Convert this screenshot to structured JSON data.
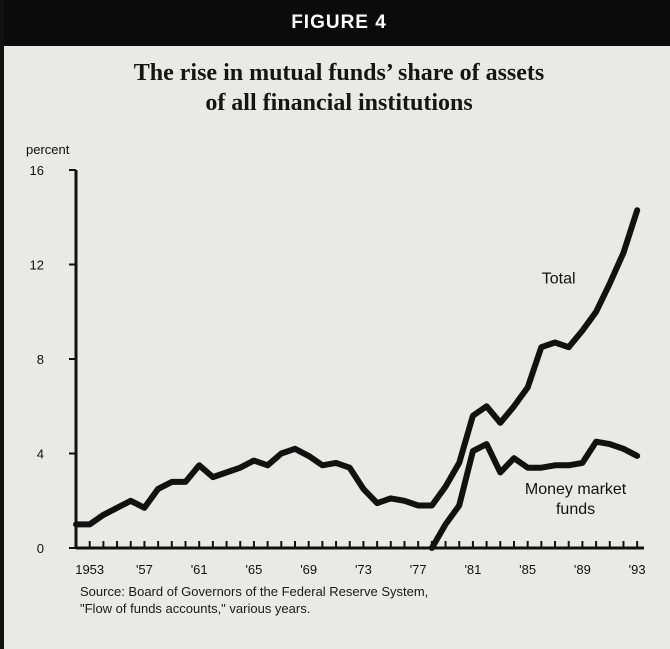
{
  "figure_label": "FIGURE 4",
  "chart_data": {
    "type": "line",
    "title_lines": [
      "The rise in mutual funds’ share of assets",
      "of all financial institutions"
    ],
    "ylabel": "percent",
    "ylim": [
      0,
      16
    ],
    "yticks": [
      0,
      4,
      8,
      12,
      16
    ],
    "xlim": [
      1952,
      1993.5
    ],
    "xtick_labels": [
      {
        "x": 1953,
        "label": "1953"
      },
      {
        "x": 1957,
        "label": "'57"
      },
      {
        "x": 1961,
        "label": "'61"
      },
      {
        "x": 1965,
        "label": "'65"
      },
      {
        "x": 1969,
        "label": "'69"
      },
      {
        "x": 1973,
        "label": "'73"
      },
      {
        "x": 1977,
        "label": "'77"
      },
      {
        "x": 1981,
        "label": "'81"
      },
      {
        "x": 1985,
        "label": "'85"
      },
      {
        "x": 1989,
        "label": "'89"
      },
      {
        "x": 1993,
        "label": "'93"
      }
    ],
    "series": [
      {
        "name": "Total",
        "label_lines": [
          "Total"
        ],
        "x": [
          1952,
          1953,
          1954,
          1955,
          1956,
          1957,
          1958,
          1959,
          1960,
          1961,
          1962,
          1963,
          1964,
          1965,
          1966,
          1967,
          1968,
          1969,
          1970,
          1971,
          1972,
          1973,
          1974,
          1975,
          1976,
          1977,
          1978,
          1979,
          1980,
          1981,
          1982,
          1983,
          1984,
          1985,
          1986,
          1987,
          1988,
          1989,
          1990,
          1991,
          1992,
          1993
        ],
        "values": [
          1.0,
          1.0,
          1.4,
          1.7,
          2.0,
          1.7,
          2.5,
          2.8,
          2.8,
          3.5,
          3.0,
          3.2,
          3.4,
          3.7,
          3.5,
          4.0,
          4.2,
          3.9,
          3.5,
          3.6,
          3.4,
          2.5,
          1.9,
          2.1,
          2.0,
          1.8,
          1.8,
          2.6,
          3.6,
          5.6,
          6.0,
          5.3,
          6.0,
          6.8,
          8.5,
          8.7,
          8.5,
          9.2,
          10.0,
          11.2,
          12.5,
          14.3
        ]
      },
      {
        "name": "Money market funds",
        "label_lines": [
          "Money market",
          "funds"
        ],
        "x": [
          1978,
          1979,
          1980,
          1981,
          1982,
          1983,
          1984,
          1985,
          1986,
          1987,
          1988,
          1989,
          1990,
          1991,
          1992,
          1993
        ],
        "values": [
          0.0,
          1.0,
          1.8,
          4.1,
          4.4,
          3.2,
          3.8,
          3.4,
          3.4,
          3.5,
          3.5,
          3.6,
          4.5,
          4.4,
          4.2,
          3.9
        ]
      }
    ],
    "source_lines": [
      "Source: Board of Governors of the Federal Reserve System,",
      "\"Flow of funds accounts,\" various years."
    ]
  }
}
